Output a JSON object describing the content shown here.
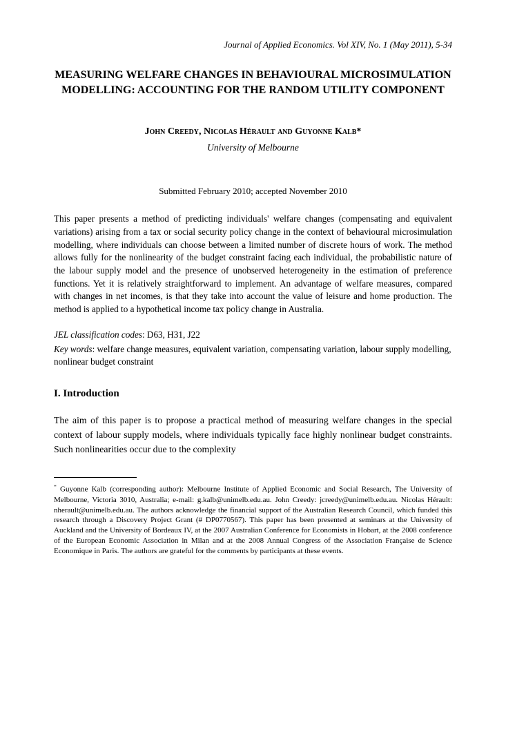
{
  "journal_ref": "Journal of Applied Economics. Vol XIV, No. 1 (May 2011), 5-34",
  "title": "MEASURING WELFARE CHANGES IN BEHAVIOURAL MICROSIMULATION MODELLING: ACCOUNTING FOR THE RANDOM UTILITY COMPONENT",
  "authors": "John Creedy, Nicolas Hérault and Guyonne Kalb",
  "author_footnote_marker": "*",
  "affiliation": "University of Melbourne",
  "submitted": "Submitted February 2010; accepted November 2010",
  "abstract": "This paper presents a method of predicting individuals' welfare changes (compensating and equivalent variations) arising from a tax or social security policy change in the context of behavioural microsimulation modelling, where individuals can choose between a limited number of discrete hours of work. The method allows fully for the nonlinearity of the budget constraint facing each individual, the probabilistic nature of the labour supply model and the presence of unobserved heterogeneity in the estimation of preference functions. Yet it is relatively straightforward to implement. An advantage of welfare measures, compared with changes in net incomes, is that they take into account the value of leisure and home production. The method is applied to a hypothetical income tax policy change in Australia.",
  "jel_label": "JEL classification codes",
  "jel_codes": ": D63, H31, J22",
  "keywords_label": "Key words",
  "keywords": ": welfare change measures, equivalent variation, compensating variation, labour supply modelling, nonlinear budget constraint",
  "section_heading": "I. Introduction",
  "body_paragraph": "The aim of this paper is to propose a practical method of measuring welfare changes in the special context of labour supply models, where individuals typically face highly nonlinear budget constraints. Such nonlinearities occur due to the complexity",
  "footnote_marker": "*",
  "footnote": " Guyonne Kalb (corresponding author): Melbourne Institute of Applied Economic and Social Research, The University of Melbourne, Victoria 3010, Australia; e-mail: g.kalb@unimelb.edu.au. John Creedy: jcreedy@unimelb.edu.au. Nicolas Hérault: nherault@unimelb.edu.au. The authors acknowledge the financial support of the Australian Research Council, which funded this research through a Discovery Project Grant (# DP0770567). This paper has been presented at seminars at the University of Auckland and the University of Bordeaux IV, at the 2007 Australian Conference for Economists in Hobart, at the 2008 conference of the European Economic Association in Milan and at the 2008 Annual Congress of the Association Française de Science Economique in Paris. The authors are grateful for the comments by participants at these events."
}
